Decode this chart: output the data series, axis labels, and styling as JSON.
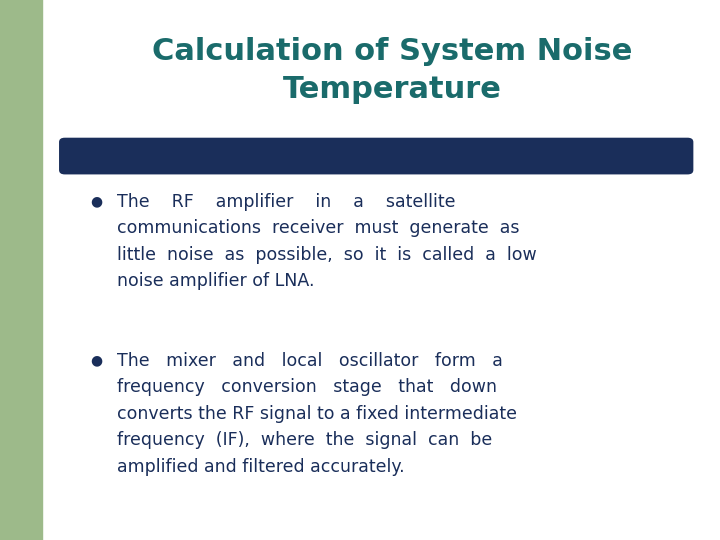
{
  "title_line1": "Calculation of System Noise",
  "title_line2": "Temperature",
  "title_color": "#1a6b6b",
  "title_fontsize": 22,
  "bar_color": "#1a2e5a",
  "left_rect_color": "#9dba8a",
  "background_color": "#f0f0ec",
  "bullet_color": "#1a2e5a",
  "text_color": "#1a2e5a",
  "text_fontsize": 12.5,
  "bullet_fontsize": 10,
  "bullet1_line1": "The    RF    amplifier    in    a    satellite",
  "bullet1_line2": "communications  receiver  must  generate  as",
  "bullet1_line3": "little  noise  as  possible,  so  it  is  called  a  low",
  "bullet1_line4": "noise amplifier of LNA.",
  "bullet2_line1": "The   mixer   and   local   oscillator   form   a",
  "bullet2_line2": "frequency   conversion   stage   that   down",
  "bullet2_line3": "converts the RF signal to a fixed intermediate",
  "bullet2_line4": "frequency  (IF),  where  the  signal  can  be",
  "bullet2_line5": "amplified and filtered accurately."
}
